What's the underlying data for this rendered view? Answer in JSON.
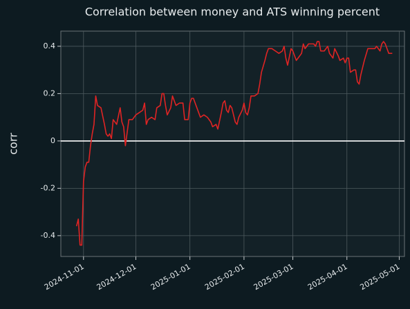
{
  "chart_data": {
    "type": "line",
    "title": "Correlation between money and ATS winning percent",
    "y_label": "corr",
    "x": [
      "2024-10-28",
      "2024-10-29",
      "2024-10-30",
      "2024-10-31",
      "2024-11-01",
      "2024-11-02",
      "2024-11-03",
      "2024-11-04",
      "2024-11-05",
      "2024-11-06",
      "2024-11-07",
      "2024-11-08",
      "2024-11-09",
      "2024-11-11",
      "2024-11-13",
      "2024-11-14",
      "2024-11-15",
      "2024-11-16",
      "2024-11-17",
      "2024-11-18",
      "2024-11-20",
      "2024-11-22",
      "2024-11-23",
      "2024-11-24",
      "2024-11-25",
      "2024-11-27",
      "2024-11-29",
      "2024-12-01",
      "2024-12-03",
      "2024-12-05",
      "2024-12-06",
      "2024-12-07",
      "2024-12-08",
      "2024-12-10",
      "2024-12-12",
      "2024-12-13",
      "2024-12-15",
      "2024-12-16",
      "2024-12-17",
      "2024-12-18",
      "2024-12-19",
      "2024-12-21",
      "2024-12-22",
      "2024-12-24",
      "2024-12-26",
      "2024-12-28",
      "2024-12-29",
      "2024-12-31",
      "2025-01-01",
      "2025-01-02",
      "2025-01-03",
      "2025-01-05",
      "2025-01-07",
      "2025-01-09",
      "2025-01-11",
      "2025-01-13",
      "2025-01-14",
      "2025-01-16",
      "2025-01-17",
      "2025-01-19",
      "2025-01-20",
      "2025-01-21",
      "2025-01-22",
      "2025-01-23",
      "2025-01-24",
      "2025-01-25",
      "2025-01-26",
      "2025-01-27",
      "2025-01-28",
      "2025-01-29",
      "2025-01-31",
      "2025-02-01",
      "2025-02-02",
      "2025-02-03",
      "2025-02-04",
      "2025-02-05",
      "2025-02-07",
      "2025-02-09",
      "2025-02-10",
      "2025-02-11",
      "2025-02-13",
      "2025-02-14",
      "2025-02-15",
      "2025-02-17",
      "2025-02-19",
      "2025-02-21",
      "2025-02-23",
      "2025-02-24",
      "2025-02-25",
      "2025-02-26",
      "2025-02-28",
      "2025-03-01",
      "2025-03-02",
      "2025-03-03",
      "2025-03-05",
      "2025-03-06",
      "2025-03-07",
      "2025-03-08",
      "2025-03-10",
      "2025-03-11",
      "2025-03-13",
      "2025-03-14",
      "2025-03-15",
      "2025-03-16",
      "2025-03-17",
      "2025-03-19",
      "2025-03-21",
      "2025-03-22",
      "2025-03-24",
      "2025-03-25",
      "2025-03-27",
      "2025-03-28",
      "2025-03-30",
      "2025-03-31",
      "2025-04-01",
      "2025-04-02",
      "2025-04-03",
      "2025-04-05",
      "2025-04-06",
      "2025-04-07",
      "2025-04-08",
      "2025-04-09",
      "2025-04-11",
      "2025-04-13",
      "2025-04-15",
      "2025-04-17",
      "2025-04-18",
      "2025-04-19",
      "2025-04-20",
      "2025-04-21",
      "2025-04-22",
      "2025-04-23",
      "2025-04-24",
      "2025-04-25",
      "2025-04-27"
    ],
    "series": [
      {
        "name": "corr",
        "color": "#e02424",
        "values": [
          -0.36,
          -0.33,
          -0.44,
          -0.44,
          -0.17,
          -0.11,
          -0.09,
          -0.09,
          -0.02,
          0.03,
          0.07,
          0.19,
          0.15,
          0.14,
          0.07,
          0.03,
          0.02,
          0.03,
          0.01,
          0.09,
          0.07,
          0.14,
          0.08,
          0.06,
          -0.02,
          0.09,
          0.09,
          0.11,
          0.12,
          0.13,
          0.16,
          0.07,
          0.09,
          0.1,
          0.09,
          0.14,
          0.15,
          0.2,
          0.2,
          0.15,
          0.11,
          0.14,
          0.19,
          0.15,
          0.16,
          0.16,
          0.09,
          0.09,
          0.16,
          0.18,
          0.18,
          0.14,
          0.1,
          0.11,
          0.1,
          0.08,
          0.06,
          0.07,
          0.05,
          0.12,
          0.16,
          0.17,
          0.13,
          0.12,
          0.15,
          0.14,
          0.11,
          0.08,
          0.07,
          0.1,
          0.13,
          0.16,
          0.12,
          0.11,
          0.14,
          0.19,
          0.19,
          0.2,
          0.24,
          0.29,
          0.34,
          0.37,
          0.39,
          0.39,
          0.38,
          0.37,
          0.38,
          0.4,
          0.35,
          0.32,
          0.39,
          0.38,
          0.36,
          0.34,
          0.36,
          0.37,
          0.41,
          0.39,
          0.41,
          0.41,
          0.41,
          0.4,
          0.42,
          0.42,
          0.38,
          0.38,
          0.4,
          0.37,
          0.35,
          0.39,
          0.36,
          0.34,
          0.35,
          0.33,
          0.35,
          0.35,
          0.29,
          0.3,
          0.3,
          0.25,
          0.24,
          0.28,
          0.34,
          0.39,
          0.39,
          0.39,
          0.4,
          0.39,
          0.38,
          0.41,
          0.42,
          0.41,
          0.39,
          0.37,
          0.37
        ]
      }
    ],
    "xlim": [
      "2024-10-19",
      "2025-05-04"
    ],
    "xticks": [
      "2024-11-01",
      "2024-12-01",
      "2025-01-01",
      "2025-02-01",
      "2025-03-01",
      "2025-04-01",
      "2025-05-01"
    ],
    "ylim": [
      -0.488,
      0.464
    ],
    "yticks": [
      -0.4,
      -0.2,
      0.0,
      0.2,
      0.4
    ],
    "hline": 0,
    "grid": true
  }
}
